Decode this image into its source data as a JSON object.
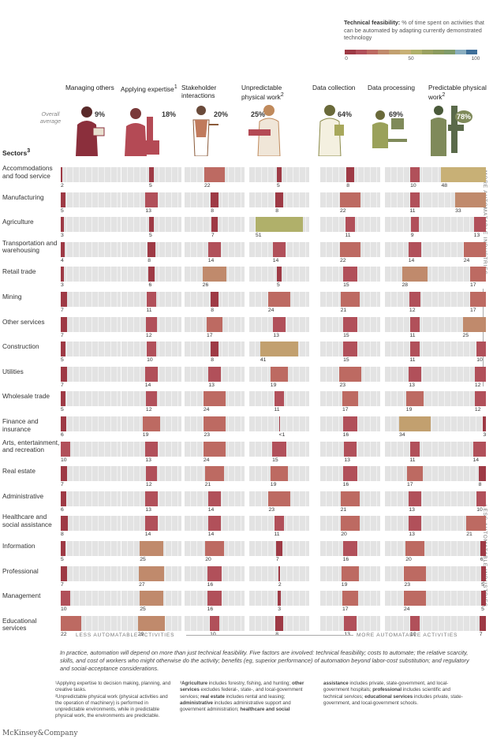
{
  "legend": {
    "title": "Technical feasibility:",
    "text": " % of time spent on activities that can be automated by adapting currently demonstrated technology",
    "ticks": [
      "0",
      "50",
      "100"
    ],
    "colors": [
      "#9e3a45",
      "#b1505a",
      "#bd6a62",
      "#c08a6c",
      "#c2a06f",
      "#c8b076",
      "#b0b06a",
      "#9aa160",
      "#8b9b5e",
      "#7f9b6a",
      "#8aaec0",
      "#3f6f99"
    ]
  },
  "overall_average_label": "Overall average",
  "sectors_heading": "Sectors",
  "sectors_heading_sup": "3",
  "columns": [
    {
      "label": "Managing others",
      "sup": "",
      "overall": "9%",
      "color": "#8b2f3c"
    },
    {
      "label": "Applying expertise",
      "sup": "1",
      "overall": "18%",
      "color": "#b44a55"
    },
    {
      "label": "Stakeholder interactions",
      "sup": "",
      "overall": "20%",
      "color": "#c07a5c"
    },
    {
      "label": "Unpredictable physical work",
      "sup": "2",
      "overall": "25%",
      "color": "#c08a5c"
    },
    {
      "label": "Data collection",
      "sup": "",
      "overall": "64%",
      "color": "#a8a85c"
    },
    {
      "label": "Data processing",
      "sup": "",
      "overall": "69%",
      "color": "#9aa15a"
    },
    {
      "label": "Predictable physical work",
      "sup": "2",
      "overall": "78%",
      "color": "#7f8a5a"
    }
  ],
  "chart_data": {
    "type": "heatmap",
    "title": "Technical feasibility: % of time spent on activities that can be automated by adapting currently demonstrated technology",
    "columns": [
      "Managing others",
      "Applying expertise",
      "Stakeholder interactions",
      "Unpredictable physical work",
      "Data collection",
      "Data processing",
      "Predictable physical work"
    ],
    "overall_average": [
      9,
      18,
      20,
      25,
      64,
      69,
      78
    ],
    "rows": [
      {
        "sector": "Accommodations and food service",
        "values": [
          2,
          5,
          22,
          5,
          8,
          10,
          48
        ],
        "labels": [
          "2",
          "5",
          "22",
          "5",
          "8",
          "10",
          "48"
        ]
      },
      {
        "sector": "Manufacturing",
        "values": [
          5,
          13,
          8,
          8,
          22,
          11,
          33
        ],
        "labels": [
          "5",
          "13",
          "8",
          "8",
          "22",
          "11",
          "33"
        ]
      },
      {
        "sector": "Agriculture",
        "values": [
          3,
          5,
          7,
          51,
          11,
          9,
          13
        ],
        "labels": [
          "3",
          "5",
          "7",
          "51",
          "11",
          "9",
          "13"
        ]
      },
      {
        "sector": "Transportation and warehousing",
        "values": [
          4,
          8,
          14,
          14,
          22,
          14,
          24
        ],
        "labels": [
          "4",
          "8",
          "14",
          "14",
          "22",
          "14",
          "24"
        ]
      },
      {
        "sector": "Retail trade",
        "values": [
          3,
          6,
          26,
          5,
          15,
          28,
          17
        ],
        "labels": [
          "3",
          "6",
          "26",
          "5",
          "15",
          "28",
          "17"
        ]
      },
      {
        "sector": "Mining",
        "values": [
          7,
          11,
          8,
          24,
          21,
          12,
          17
        ],
        "labels": [
          "7",
          "11",
          "8",
          "24",
          "21",
          "12",
          "17"
        ]
      },
      {
        "sector": "Other services",
        "values": [
          7,
          12,
          17,
          13,
          15,
          11,
          25
        ],
        "labels": [
          "7",
          "12",
          "17",
          "13",
          "15",
          "11",
          "25"
        ]
      },
      {
        "sector": "Construction",
        "values": [
          5,
          10,
          8,
          41,
          15,
          11,
          10
        ],
        "labels": [
          "5",
          "10",
          "8",
          "41",
          "15",
          "11",
          "10"
        ]
      },
      {
        "sector": "Utilities",
        "values": [
          7,
          14,
          13,
          19,
          23,
          13,
          12
        ],
        "labels": [
          "7",
          "14",
          "13",
          "19",
          "23",
          "13",
          "12"
        ]
      },
      {
        "sector": "Wholesale trade",
        "values": [
          5,
          12,
          24,
          11,
          17,
          19,
          12
        ],
        "labels": [
          "5",
          "12",
          "24",
          "11",
          "17",
          "19",
          "12"
        ]
      },
      {
        "sector": "Finance and insurance",
        "values": [
          6,
          19,
          23,
          0.5,
          16,
          34,
          3
        ],
        "labels": [
          "6",
          "19",
          "23",
          "<1",
          "16",
          "34",
          "3"
        ]
      },
      {
        "sector": "Arts, entertainment, and recreation",
        "values": [
          10,
          13,
          24,
          15,
          13,
          11,
          14
        ],
        "labels": [
          "10",
          "13",
          "24",
          "15",
          "13",
          "11",
          "14"
        ]
      },
      {
        "sector": "Real estate",
        "values": [
          7,
          12,
          21,
          19,
          16,
          17,
          8
        ],
        "labels": [
          "7",
          "12",
          "21",
          "19",
          "16",
          "17",
          "8"
        ]
      },
      {
        "sector": "Administrative",
        "values": [
          6,
          13,
          14,
          23,
          21,
          13,
          10
        ],
        "labels": [
          "6",
          "13",
          "14",
          "23",
          "21",
          "13",
          "10"
        ]
      },
      {
        "sector": "Healthcare and social assistance",
        "values": [
          8,
          14,
          14,
          11,
          20,
          13,
          21
        ],
        "labels": [
          "8",
          "14",
          "14",
          "11",
          "20",
          "13",
          "21"
        ]
      },
      {
        "sector": "Information",
        "values": [
          5,
          25,
          20,
          7,
          16,
          20,
          6
        ],
        "labels": [
          "5",
          "25",
          "20",
          "7",
          "16",
          "20",
          "6"
        ]
      },
      {
        "sector": "Professional",
        "values": [
          7,
          27,
          16,
          2,
          19,
          23,
          5
        ],
        "labels": [
          "7",
          "27",
          "16",
          "2",
          "19",
          "23",
          "5"
        ]
      },
      {
        "sector": "Management",
        "values": [
          10,
          25,
          16,
          3,
          17,
          24,
          5
        ],
        "labels": [
          "10",
          "25",
          "16",
          "3",
          "17",
          "24",
          "5"
        ]
      },
      {
        "sector": "Educational services",
        "values": [
          22,
          29,
          10,
          8,
          13,
          10,
          7
        ],
        "labels": [
          "22",
          "29",
          "10",
          "8",
          "13",
          "10",
          "7"
        ]
      }
    ]
  },
  "axis_labels": {
    "more_industries": "MORE AUTOMATABLE INDUSTRIES",
    "less_industries": "LESS AUTOMATABLE INDUSTRIES",
    "less_activities": "LESS AUTOMATABLE ACTIVITIES",
    "more_activities": "MORE AUTOMATABLE ACTIVITIES"
  },
  "note": "In practice, automation will depend on more than just technical feasibility. Five factors are involved: technical feasibility; costs to automate; the relative scarcity, skills, and cost of workers who might otherwise do the activity; benefits (eg, superior performance) of automation beyond labor-cost substitution; and regulatory and social-acceptance considerations.",
  "footnotes": {
    "fn1": "¹Applying expertise to decision making, planning, and creative tasks.",
    "fn2": "²Unpredictable physical work (physical activities and the operation of machinery) is performed in unpredictable environments, while in predictable physical work, the environments are predictable.",
    "fn3a_sup": "³",
    "fn3a_b1": "Agriculture",
    "fn3a_t1": " includes forestry, fishing, and hunting; ",
    "fn3a_b2": "other services",
    "fn3a_t2": " excludes federal-, state-, and local-government services; ",
    "fn3a_b3": "real estate",
    "fn3a_t3": " includes rental and leasing; ",
    "fn3a_b4": "administrative",
    "fn3a_t4": " includes administrative support and government administration; ",
    "fn3a_b5": "healthcare and social",
    "fn3b_b1": "assistance",
    "fn3b_t1": " includes private, state-government, and local-government hospitals; ",
    "fn3b_b2": "professional",
    "fn3b_t2": " includes scientific and technical services; ",
    "fn3b_b3": "educational services",
    "fn3b_t3": " includes private, state-government, and local-government schools."
  },
  "brand": "McKinsey&Company"
}
